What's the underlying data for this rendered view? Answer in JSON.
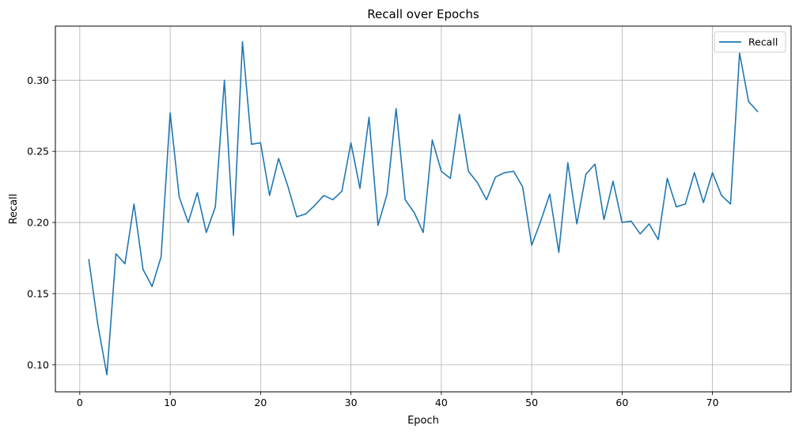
{
  "chart_data": {
    "type": "line",
    "title": "Recall over Epochs",
    "xlabel": "Epoch",
    "ylabel": "Recall",
    "xlim": [
      -2.7,
      78.7
    ],
    "ylim": [
      0.081,
      0.338
    ],
    "xticks": [
      0,
      10,
      20,
      30,
      40,
      50,
      60,
      70
    ],
    "yticks": [
      0.1,
      0.15,
      0.2,
      0.25,
      0.3
    ],
    "ytick_labels": [
      "0.10",
      "0.15",
      "0.20",
      "0.25",
      "0.30"
    ],
    "grid": true,
    "legend_position": "top-right",
    "colors": {
      "line": "#1f77b4",
      "grid": "#b0b0b0"
    },
    "series": [
      {
        "name": "Recall",
        "x": [
          1,
          2,
          3,
          4,
          5,
          6,
          7,
          8,
          9,
          10,
          11,
          12,
          13,
          14,
          15,
          16,
          17,
          18,
          19,
          20,
          21,
          22,
          23,
          24,
          25,
          26,
          27,
          28,
          29,
          30,
          31,
          32,
          33,
          34,
          35,
          36,
          37,
          38,
          39,
          40,
          41,
          42,
          43,
          44,
          45,
          46,
          47,
          48,
          49,
          50,
          51,
          52,
          53,
          54,
          55,
          56,
          57,
          58,
          59,
          60,
          61,
          62,
          63,
          64,
          65,
          66,
          67,
          68,
          69,
          70,
          71,
          72,
          73,
          74,
          75
        ],
        "values": [
          0.174,
          0.128,
          0.093,
          0.178,
          0.171,
          0.213,
          0.167,
          0.155,
          0.176,
          0.277,
          0.218,
          0.2,
          0.221,
          0.193,
          0.211,
          0.3,
          0.191,
          0.327,
          0.255,
          0.256,
          0.219,
          0.245,
          0.226,
          0.204,
          0.206,
          0.212,
          0.219,
          0.216,
          0.222,
          0.256,
          0.224,
          0.274,
          0.198,
          0.22,
          0.28,
          0.216,
          0.207,
          0.193,
          0.258,
          0.236,
          0.231,
          0.276,
          0.236,
          0.228,
          0.216,
          0.232,
          0.235,
          0.236,
          0.225,
          0.184,
          0.201,
          0.22,
          0.179,
          0.242,
          0.199,
          0.234,
          0.241,
          0.202,
          0.229,
          0.2,
          0.201,
          0.192,
          0.199,
          0.188,
          0.231,
          0.211,
          0.213,
          0.235,
          0.214,
          0.235,
          0.219,
          0.213,
          0.319,
          0.285,
          0.278
        ]
      }
    ]
  }
}
